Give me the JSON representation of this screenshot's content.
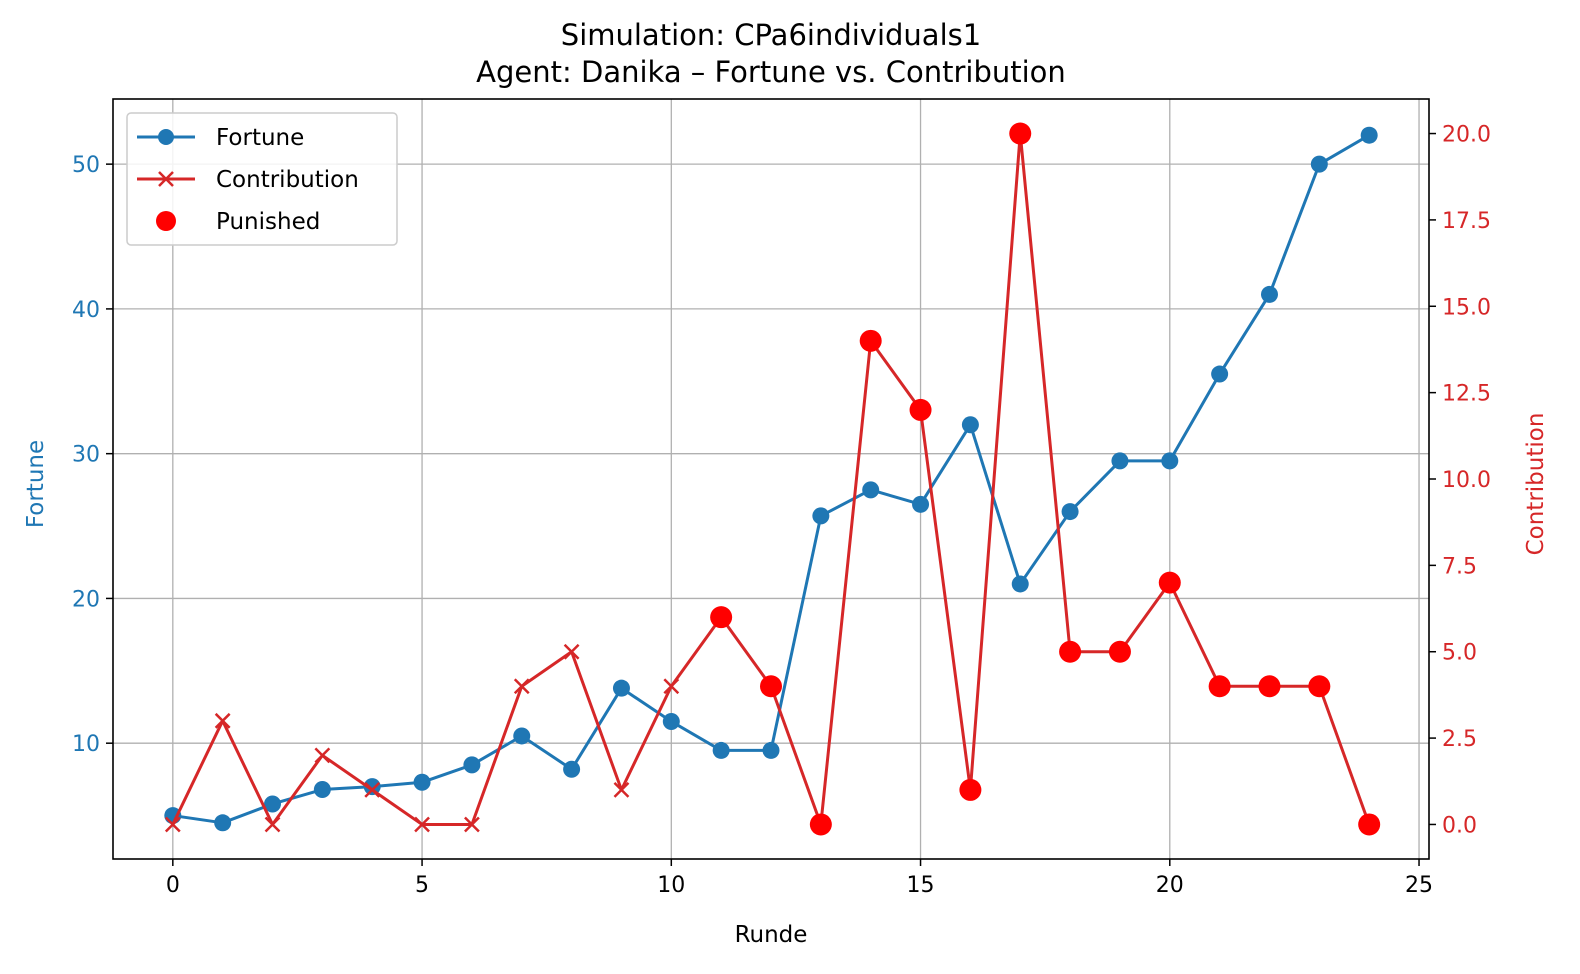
{
  "chart_data": {
    "type": "line",
    "title": "Simulation: CPa6individuals1",
    "subtitle": "Agent: Danika – Fortune vs. Contribution",
    "xlabel": "Runde",
    "ylabel_left": "Fortune",
    "ylabel_right": "Contribution",
    "xlim": [
      -1.2,
      25.2
    ],
    "ylim_left": [
      2.0,
      54.5
    ],
    "ylim_right": [
      -1.0,
      21.0
    ],
    "x_ticks": [
      0,
      5,
      10,
      15,
      20,
      25
    ],
    "y_left_ticks": [
      10,
      20,
      30,
      40,
      50
    ],
    "y_right_ticks": [
      0.0,
      2.5,
      5.0,
      7.5,
      10.0,
      12.5,
      15.0,
      17.5,
      20.0
    ],
    "y_right_tick_labels": [
      "0.0",
      "2.5",
      "5.0",
      "7.5",
      "10.0",
      "12.5",
      "15.0",
      "17.5",
      "20.0"
    ],
    "grid": true,
    "legend_position": "top-left",
    "colors": {
      "fortune": "#1f77b4",
      "contribution": "#d62728",
      "punished": "#ff0000"
    },
    "x": [
      0,
      1,
      2,
      3,
      4,
      5,
      6,
      7,
      8,
      9,
      10,
      11,
      12,
      13,
      14,
      15,
      16,
      17,
      18,
      19,
      20,
      21,
      22,
      23,
      24
    ],
    "series": [
      {
        "name": "Fortune",
        "axis": "left",
        "marker": "circle",
        "values": [
          5.0,
          4.5,
          5.8,
          6.8,
          7.0,
          7.3,
          8.5,
          10.5,
          8.2,
          13.8,
          11.5,
          9.5,
          9.5,
          25.7,
          27.5,
          26.5,
          32.0,
          21.0,
          26.0,
          29.5,
          29.5,
          35.5,
          41.0,
          50.0,
          52.0
        ]
      },
      {
        "name": "Contribution",
        "axis": "right",
        "marker": "x",
        "values": [
          0,
          3,
          0,
          2,
          1,
          0,
          0,
          4,
          5,
          1,
          4,
          6,
          4,
          0,
          14,
          12,
          1,
          20,
          5,
          5,
          7,
          4,
          4,
          4,
          0
        ]
      }
    ],
    "punished": {
      "name": "Punished",
      "axis": "right",
      "x": [
        11,
        12,
        13,
        14,
        15,
        16,
        17,
        18,
        19,
        20,
        21,
        22,
        23,
        24
      ],
      "y": [
        6,
        4,
        0,
        14,
        12,
        1,
        20,
        5,
        5,
        7,
        4,
        4,
        4,
        0
      ]
    },
    "legend": [
      "Fortune",
      "Contribution",
      "Punished"
    ]
  }
}
